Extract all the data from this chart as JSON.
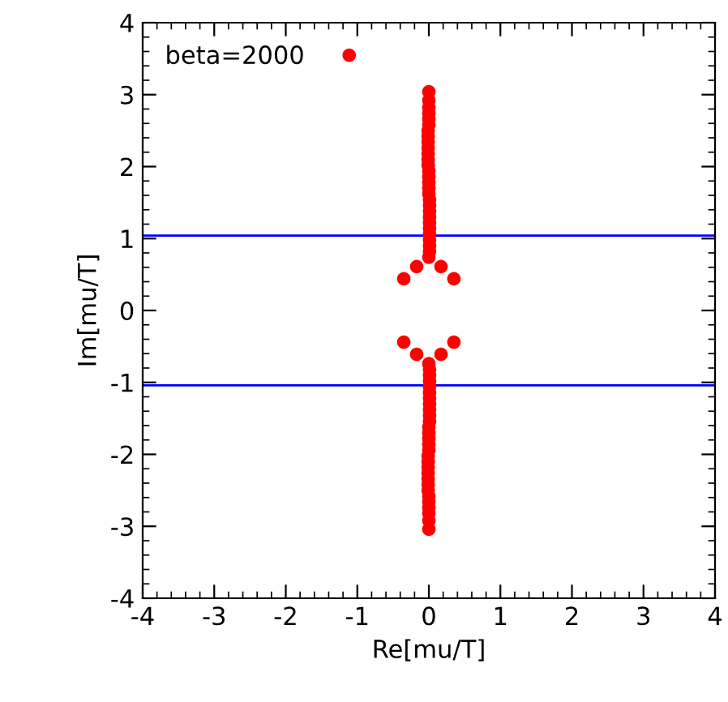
{
  "chart_data": {
    "type": "scatter",
    "xlabel": "Re[mu/T]",
    "ylabel": "Im[mu/T]",
    "xlim": [
      -4,
      4
    ],
    "ylim": [
      -4,
      4
    ],
    "xticks": [
      -4,
      -3,
      -2,
      -1,
      0,
      1,
      2,
      3,
      4
    ],
    "yticks": [
      -4,
      -3,
      -2,
      -1,
      0,
      1,
      2,
      3,
      4
    ],
    "grid": false,
    "legend": "top left",
    "marker": "circle",
    "series": [
      {
        "name": "beta=2000",
        "color": "#ff0000",
        "x": [
          -0.35,
          -0.17,
          0.17,
          0.35,
          0.0,
          0.01,
          0.01,
          0.01,
          0.01,
          0.01,
          0.01,
          0.01,
          0.01,
          0.01,
          0.01,
          0.0,
          0.0,
          0.0,
          0.0,
          0.0,
          -0.01,
          -0.01,
          -0.01,
          -0.01,
          -0.01,
          -0.01,
          -0.01,
          0.0,
          0.0,
          0.0,
          0.0,
          0.0,
          0.0,
          -0.35,
          -0.17,
          0.17,
          0.35,
          0.0,
          0.01,
          0.01,
          0.01,
          0.01,
          0.01,
          0.01,
          0.01,
          0.01,
          0.01,
          0.01,
          0.0,
          0.0,
          0.0,
          0.0,
          0.0,
          -0.01,
          -0.01,
          -0.01,
          -0.01,
          -0.01,
          -0.01,
          -0.01,
          0.0,
          0.0,
          0.0,
          0.0,
          0.0,
          0.0
        ],
        "values": [
          0.44,
          0.61,
          0.61,
          0.44,
          0.74,
          0.82,
          0.9,
          0.98,
          1.06,
          1.14,
          1.22,
          1.3,
          1.38,
          1.46,
          1.54,
          1.62,
          1.7,
          1.78,
          1.86,
          1.94,
          2.02,
          2.1,
          2.18,
          2.26,
          2.34,
          2.42,
          2.5,
          2.58,
          2.66,
          2.74,
          2.82,
          2.92,
          3.04,
          -0.44,
          -0.61,
          -0.61,
          -0.44,
          -0.74,
          -0.82,
          -0.9,
          -0.98,
          -1.06,
          -1.14,
          -1.22,
          -1.3,
          -1.38,
          -1.46,
          -1.54,
          -1.62,
          -1.7,
          -1.78,
          -1.86,
          -1.94,
          -2.02,
          -2.1,
          -2.18,
          -2.26,
          -2.34,
          -2.42,
          -2.5,
          -2.58,
          -2.66,
          -2.74,
          -2.82,
          -2.92,
          -3.04
        ]
      }
    ],
    "ref_lines": [
      {
        "axis": "y",
        "value": 1.04,
        "label": null,
        "color": "#0000ff"
      },
      {
        "axis": "y",
        "value": -1.04,
        "label": null,
        "color": "#0000ff"
      }
    ]
  }
}
